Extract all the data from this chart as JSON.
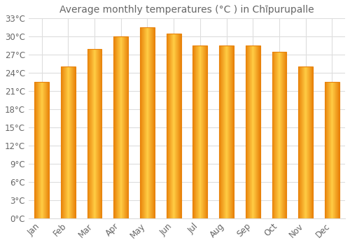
{
  "title": "Average monthly temperatures (°C ) in Chīpurupalle",
  "months": [
    "Jan",
    "Feb",
    "Mar",
    "Apr",
    "May",
    "Jun",
    "Jul",
    "Aug",
    "Sep",
    "Oct",
    "Nov",
    "Dec"
  ],
  "values": [
    22.5,
    25.0,
    28.0,
    30.0,
    31.5,
    30.5,
    28.5,
    28.5,
    28.5,
    27.5,
    25.0,
    22.5
  ],
  "bar_color_left": "#E8820A",
  "bar_color_center": "#FFCC44",
  "bar_color_right": "#E8820A",
  "background_color": "#FFFFFF",
  "grid_color": "#DDDDDD",
  "text_color": "#666666",
  "ylim": [
    0,
    33
  ],
  "ytick_values": [
    0,
    3,
    6,
    9,
    12,
    15,
    18,
    21,
    24,
    27,
    30,
    33
  ],
  "title_fontsize": 10,
  "tick_fontsize": 8.5,
  "bar_width": 0.55
}
